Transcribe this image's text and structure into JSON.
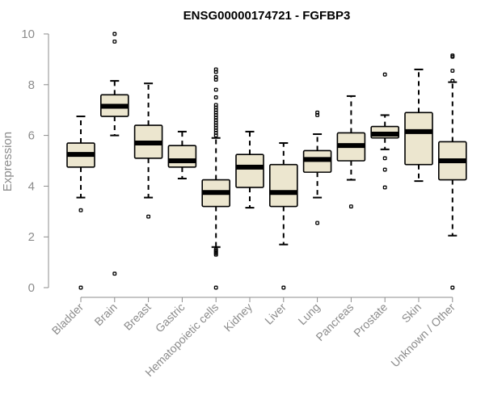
{
  "chart_data": {
    "type": "boxplot",
    "title": "ENSG00000174721 - FGFBP3",
    "xlabel": "",
    "ylabel": "Expression",
    "ylim": [
      0,
      10
    ],
    "yticks": [
      0,
      2,
      4,
      6,
      8,
      10
    ],
    "grid": false,
    "colors": {
      "box_fill": "#ece6cf",
      "box_stroke": "#000000",
      "axis": "#8c8c8c",
      "title": "#000000"
    },
    "categories": [
      "Bladder",
      "Brain",
      "Breast",
      "Gastric",
      "Hematopoietic cells",
      "Kidney",
      "Liver",
      "Lung",
      "Pancreas",
      "Prostate",
      "Skin",
      "Unknown / Other"
    ],
    "boxes": [
      {
        "category": "Bladder",
        "whisker_low": 3.55,
        "q1": 4.75,
        "median": 5.25,
        "q3": 5.7,
        "whisker_high": 6.75,
        "outliers": [
          3.05,
          0.0
        ]
      },
      {
        "category": "Brain",
        "whisker_low": 6.0,
        "q1": 6.75,
        "median": 7.15,
        "q3": 7.6,
        "whisker_high": 8.15,
        "outliers": [
          10.0,
          9.7,
          0.55
        ]
      },
      {
        "category": "Breast",
        "whisker_low": 3.55,
        "q1": 5.1,
        "median": 5.7,
        "q3": 6.4,
        "whisker_high": 8.05,
        "outliers": [
          2.8
        ]
      },
      {
        "category": "Gastric",
        "whisker_low": 4.3,
        "q1": 4.75,
        "median": 5.0,
        "q3": 5.6,
        "whisker_high": 6.15,
        "outliers": []
      },
      {
        "category": "Hematopoietic cells",
        "whisker_low": 1.6,
        "q1": 3.2,
        "median": 3.75,
        "q3": 4.25,
        "whisker_high": 5.9,
        "outliers": [
          8.6,
          8.5,
          8.3,
          8.2,
          7.8,
          7.5,
          7.2,
          7.1,
          7.0,
          6.9,
          6.8,
          6.7,
          6.6,
          6.5,
          6.4,
          6.3,
          6.2,
          6.1,
          6.0,
          1.5,
          1.45,
          1.4,
          1.35,
          1.3,
          0.0
        ]
      },
      {
        "category": "Kidney",
        "whisker_low": 3.15,
        "q1": 3.95,
        "median": 4.75,
        "q3": 5.25,
        "whisker_high": 6.15,
        "outliers": []
      },
      {
        "category": "Liver",
        "whisker_low": 1.7,
        "q1": 3.2,
        "median": 3.75,
        "q3": 4.85,
        "whisker_high": 5.7,
        "outliers": [
          0.0
        ]
      },
      {
        "category": "Lung",
        "whisker_low": 3.55,
        "q1": 4.55,
        "median": 5.05,
        "q3": 5.4,
        "whisker_high": 6.05,
        "outliers": [
          6.9,
          6.8,
          2.55
        ]
      },
      {
        "category": "Pancreas",
        "whisker_low": 4.25,
        "q1": 5.0,
        "median": 5.6,
        "q3": 6.1,
        "whisker_high": 7.55,
        "outliers": [
          3.2
        ]
      },
      {
        "category": "Prostate",
        "whisker_low": 5.45,
        "q1": 5.9,
        "median": 6.05,
        "q3": 6.35,
        "whisker_high": 6.8,
        "outliers": [
          8.4,
          5.1,
          4.65,
          3.95
        ]
      },
      {
        "category": "Skin",
        "whisker_low": 4.2,
        "q1": 4.85,
        "median": 6.15,
        "q3": 6.9,
        "whisker_high": 8.6,
        "outliers": []
      },
      {
        "category": "Unknown / Other",
        "whisker_low": 2.05,
        "q1": 4.25,
        "median": 5.0,
        "q3": 5.75,
        "whisker_high": 8.1,
        "outliers": [
          9.15,
          9.1,
          8.55,
          8.15,
          0.0
        ]
      }
    ]
  }
}
